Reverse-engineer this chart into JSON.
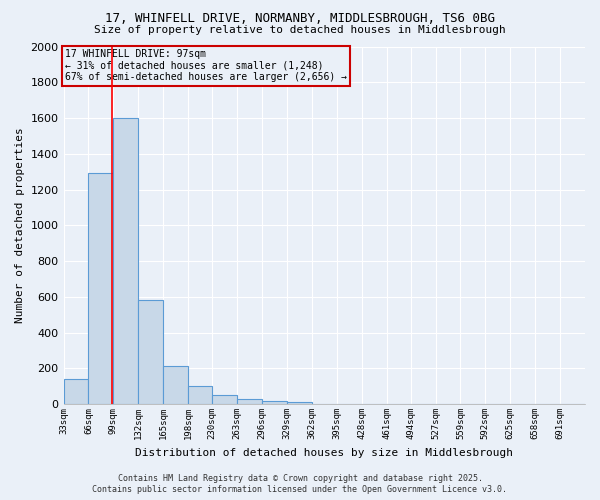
{
  "title_line1": "17, WHINFELL DRIVE, NORMANBY, MIDDLESBROUGH, TS6 0BG",
  "title_line2": "Size of property relative to detached houses in Middlesbrough",
  "xlabel": "Distribution of detached houses by size in Middlesbrough",
  "ylabel": "Number of detached properties",
  "bar_color": "#c8d8e8",
  "bar_edgecolor": "#5b9bd5",
  "bar_linewidth": 0.8,
  "background_color": "#eaf0f8",
  "grid_color": "#ffffff",
  "annotation_box_color": "#cc0000",
  "annotation_line1": "17 WHINFELL DRIVE: 97sqm",
  "annotation_line2": "← 31% of detached houses are smaller (1,248)",
  "annotation_line3": "67% of semi-detached houses are larger (2,656) →",
  "property_line_x": 97,
  "categories": [
    "33sqm",
    "66sqm",
    "99sqm",
    "132sqm",
    "165sqm",
    "198sqm",
    "230sqm",
    "263sqm",
    "296sqm",
    "329sqm",
    "362sqm",
    "395sqm",
    "428sqm",
    "461sqm",
    "494sqm",
    "527sqm",
    "559sqm",
    "592sqm",
    "625sqm",
    "658sqm",
    "691sqm"
  ],
  "bin_edges": [
    33,
    66,
    99,
    132,
    165,
    198,
    230,
    263,
    296,
    329,
    362,
    395,
    428,
    461,
    494,
    527,
    559,
    592,
    625,
    658,
    691,
    724
  ],
  "values": [
    140,
    1290,
    1600,
    580,
    215,
    100,
    50,
    30,
    15,
    10,
    0,
    0,
    0,
    0,
    0,
    0,
    0,
    0,
    0,
    0,
    0
  ],
  "ylim": [
    0,
    2000
  ],
  "yticks": [
    0,
    200,
    400,
    600,
    800,
    1000,
    1200,
    1400,
    1600,
    1800,
    2000
  ],
  "footnote_line1": "Contains HM Land Registry data © Crown copyright and database right 2025.",
  "footnote_line2": "Contains public sector information licensed under the Open Government Licence v3.0."
}
